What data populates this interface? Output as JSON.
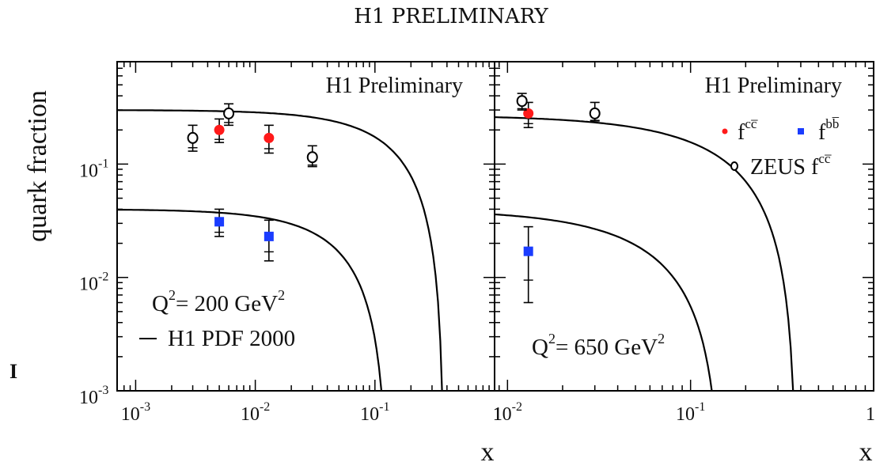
{
  "page_title": "H1 PRELIMINARY",
  "y_axis_label": "quark fraction",
  "x_axis_label": "x",
  "colors": {
    "curve": "#000000",
    "charm": "#ff1a1a",
    "beauty": "#1a3cff",
    "zeus": "#000000",
    "axes": "#000000"
  },
  "chart_data": [
    {
      "type": "scatter",
      "panel": "left",
      "title": "H1 Preliminary",
      "annotation": {
        "base": "Q",
        "sup": "2",
        "mid": "= 200 GeV",
        "sup2": "2"
      },
      "legend_line": "H1 PDF 2000",
      "x_scale": "log",
      "y_scale": "log",
      "xlim": [
        0.0007,
        1
      ],
      "ylim": [
        0.001,
        0.8
      ],
      "x_ticks": [
        {
          "value": 0.001,
          "base": "10",
          "exp": "-3"
        },
        {
          "value": 0.01,
          "base": "10",
          "exp": "-2"
        },
        {
          "value": 0.1,
          "base": "10",
          "exp": "-1"
        },
        {
          "value": 1,
          "base": "1",
          "exp": ""
        }
      ],
      "y_ticks": [
        {
          "value": 0.1,
          "base": "10",
          "exp": "-1"
        },
        {
          "value": 0.01,
          "base": "10",
          "exp": "-2"
        },
        {
          "value": 0.001,
          "base": "10",
          "exp": "-3"
        }
      ],
      "series": [
        {
          "key": "charm",
          "points": [
            {
              "x": 0.005,
              "y": 0.2,
              "ylo": 0.155,
              "yhi": 0.25
            },
            {
              "x": 0.013,
              "y": 0.17,
              "ylo": 0.125,
              "yhi": 0.22
            }
          ]
        },
        {
          "key": "beauty",
          "points": [
            {
              "x": 0.005,
              "y": 0.031,
              "ylo": 0.023,
              "yhi": 0.04
            },
            {
              "x": 0.013,
              "y": 0.023,
              "ylo": 0.014,
              "yhi": 0.032
            }
          ]
        },
        {
          "key": "zeus",
          "points": [
            {
              "x": 0.003,
              "y": 0.17,
              "ylo": 0.13,
              "yhi": 0.22
            },
            {
              "x": 0.006,
              "y": 0.28,
              "ylo": 0.22,
              "yhi": 0.34
            },
            {
              "x": 0.03,
              "y": 0.115,
              "ylo": 0.095,
              "yhi": 0.145
            }
          ]
        }
      ],
      "curves": [
        {
          "key": "charm-curve",
          "y0": 0.3,
          "xc": 0.38
        },
        {
          "key": "beauty-curve",
          "y0": 0.04,
          "xc": 0.13
        }
      ]
    },
    {
      "type": "scatter",
      "panel": "right",
      "title": "H1 Preliminary",
      "annotation": {
        "base": "Q",
        "sup": "2",
        "mid": "= 650 GeV",
        "sup2": "2"
      },
      "legend": [
        {
          "key": "charm",
          "base": "f",
          "sup": "cc̅"
        },
        {
          "key": "beauty",
          "base": "f",
          "sup": "bb̅"
        },
        {
          "key": "zeus",
          "base": "ZEUS f",
          "sup": "cc̅"
        }
      ],
      "x_scale": "log",
      "y_scale": "log",
      "xlim": [
        0.0085,
        1
      ],
      "ylim": [
        0.001,
        0.8
      ],
      "x_ticks": [
        {
          "value": 0.01,
          "base": "10",
          "exp": "-2"
        },
        {
          "value": 0.1,
          "base": "10",
          "exp": "-1"
        },
        {
          "value": 1,
          "base": "1",
          "exp": ""
        }
      ],
      "series": [
        {
          "key": "charm",
          "points": [
            {
              "x": 0.013,
              "y": 0.28,
              "ylo": 0.21,
              "yhi": 0.35
            }
          ]
        },
        {
          "key": "beauty",
          "points": [
            {
              "x": 0.013,
              "y": 0.017,
              "ylo": 0.006,
              "yhi": 0.028
            }
          ]
        },
        {
          "key": "zeus",
          "points": [
            {
              "x": 0.012,
              "y": 0.36,
              "ylo": 0.3,
              "yhi": 0.42
            },
            {
              "x": 0.03,
              "y": 0.28,
              "ylo": 0.24,
              "yhi": 0.35
            }
          ]
        }
      ],
      "curves": [
        {
          "key": "charm-curve",
          "y0": 0.27,
          "xc": 0.38
        },
        {
          "key": "beauty-curve",
          "y0": 0.04,
          "xc": 0.15
        }
      ]
    }
  ]
}
